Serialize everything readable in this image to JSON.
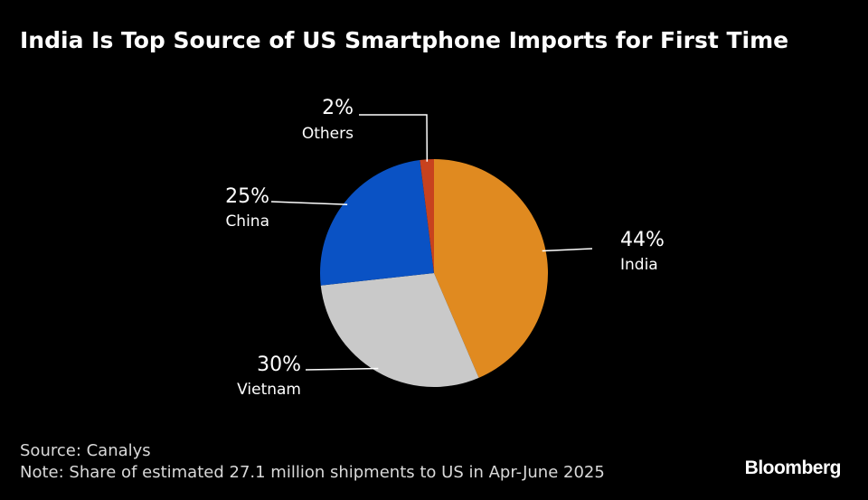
{
  "header": {
    "title": "India Is Top Source of US Smartphone Imports for First Time"
  },
  "chart_data": {
    "type": "pie",
    "title": "India Is Top Source of US Smartphone Imports for First Time",
    "slices": [
      {
        "name": "India",
        "value": 44,
        "label": "44%",
        "color": "#e08a20"
      },
      {
        "name": "Vietnam",
        "value": 30,
        "label": "30%",
        "color": "#c9c9c9"
      },
      {
        "name": "China",
        "value": 25,
        "label": "25%",
        "color": "#0a52c4"
      },
      {
        "name": "Others",
        "value": 2,
        "label": "2%",
        "color": "#c8421e"
      }
    ]
  },
  "footer": {
    "source": "Source: Canalys",
    "note": "Note: Share of estimated 27.1 million shipments to US in Apr-June 2025"
  },
  "brand": {
    "name": "Bloomberg"
  }
}
